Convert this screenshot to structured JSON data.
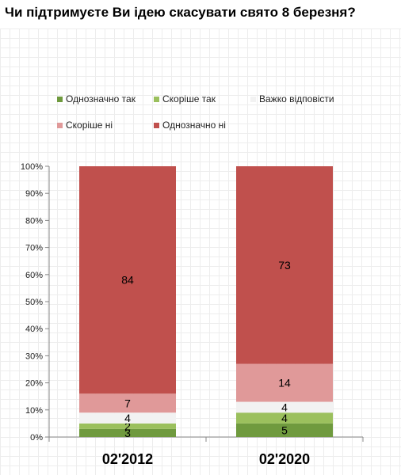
{
  "chart_data": {
    "type": "bar",
    "stacked": true,
    "percent": true,
    "title": "Чи підтримуєте Ви ідею скасувати свято 8 березня?",
    "categories": [
      "02'2012",
      "02'2020"
    ],
    "series": [
      {
        "name": "Однозначно так",
        "color": "#6f9a3e",
        "values": [
          3,
          5
        ]
      },
      {
        "name": "Скоріше так",
        "color": "#9bc05d",
        "values": [
          2,
          4
        ]
      },
      {
        "name": "Важко відповісти",
        "color": "#f2f2f2",
        "values": [
          4,
          4
        ]
      },
      {
        "name": "Скоріше ні",
        "color": "#e09999",
        "values": [
          7,
          14
        ]
      },
      {
        "name": "Однозначно ні",
        "color": "#c0504d",
        "values": [
          84,
          73
        ]
      }
    ],
    "ylim": [
      0,
      100
    ],
    "yticks": [
      "0%",
      "10%",
      "20%",
      "30%",
      "40%",
      "50%",
      "60%",
      "70%",
      "80%",
      "90%",
      "100%"
    ],
    "legend_position": "top",
    "grid": false
  }
}
